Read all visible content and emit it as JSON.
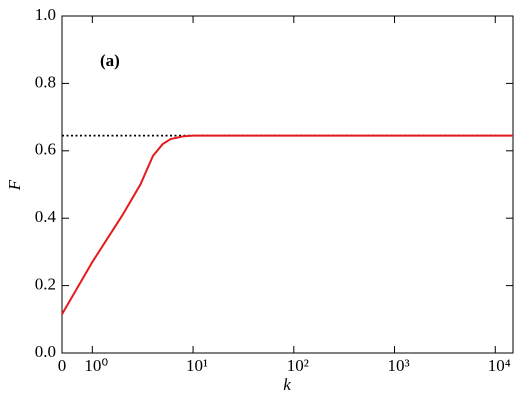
{
  "chart_data": {
    "type": "line",
    "annotation": "(a)",
    "xlabel": "k",
    "ylabel": "F",
    "xscale": "log",
    "x": [
      0.5,
      1,
      2,
      3,
      4,
      5,
      6,
      8,
      10,
      20,
      100,
      1000,
      10000,
      15000
    ],
    "series": [
      {
        "name": "F",
        "color": "#e41a1c",
        "values": [
          0.115,
          0.27,
          0.41,
          0.5,
          0.585,
          0.62,
          0.635,
          0.643,
          0.645,
          0.645,
          0.645,
          0.645,
          0.645,
          0.645
        ]
      }
    ],
    "reference_line": 0.645,
    "xlim": [
      0.5,
      15000
    ],
    "xticks": [
      {
        "value": 0.5,
        "label": "0"
      },
      {
        "value": 1,
        "label": "10⁰"
      },
      {
        "value": 10,
        "label": "10¹"
      },
      {
        "value": 100,
        "label": "10²"
      },
      {
        "value": 1000,
        "label": "10³"
      },
      {
        "value": 10000,
        "label": "10⁴"
      }
    ],
    "ylim": [
      0,
      1
    ],
    "yticks": [
      {
        "value": 0,
        "label": "0.0"
      },
      {
        "value": 0.2,
        "label": "0.2"
      },
      {
        "value": 0.4,
        "label": "0.4"
      },
      {
        "value": 0.6,
        "label": "0.6"
      },
      {
        "value": 0.8,
        "label": "0.8"
      },
      {
        "value": 1,
        "label": "1.0"
      }
    ]
  }
}
